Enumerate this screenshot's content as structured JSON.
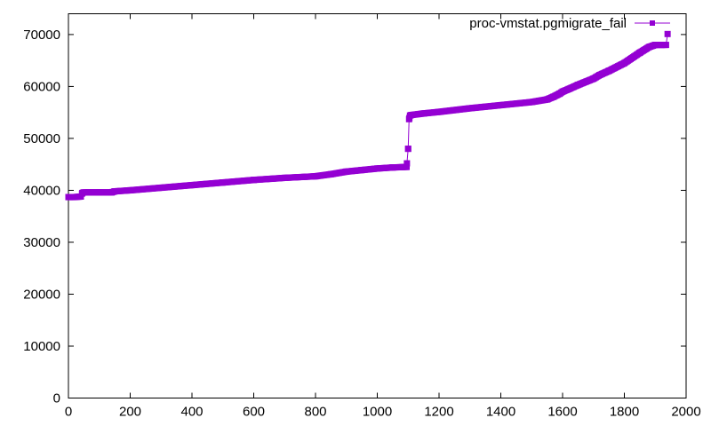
{
  "chart_data": {
    "type": "line",
    "title": "",
    "xlabel": "",
    "ylabel": "",
    "xlim": [
      0,
      2000
    ],
    "ylim": [
      0,
      74000
    ],
    "x_ticks": [
      0,
      200,
      400,
      600,
      800,
      1000,
      1200,
      1400,
      1600,
      1800,
      2000
    ],
    "y_ticks": [
      0,
      10000,
      20000,
      30000,
      40000,
      50000,
      60000,
      70000
    ],
    "x_tick_labels": [
      "0",
      "200",
      "400",
      "600",
      "800",
      "1000",
      "1200",
      "1400",
      "1600",
      "1800",
      "2000"
    ],
    "y_tick_labels": [
      "0",
      "10000",
      "20000",
      "30000",
      "40000",
      "50000",
      "60000",
      "70000"
    ],
    "grid": false,
    "legend_position": "top-right",
    "series": [
      {
        "name": "proc-vmstat.pgmigrate_fail",
        "color": "#9400d3",
        "marker": "square",
        "x": [
          0,
          20,
          40,
          45,
          50,
          100,
          140,
          150,
          200,
          300,
          400,
          500,
          600,
          700,
          800,
          850,
          900,
          950,
          1000,
          1050,
          1095,
          1100,
          1103,
          1106,
          1110,
          1150,
          1200,
          1300,
          1400,
          1500,
          1550,
          1570,
          1580,
          1590,
          1600,
          1620,
          1650,
          1700,
          1720,
          1750,
          1800,
          1850,
          1880,
          1900,
          1920,
          1935,
          1940
        ],
        "y": [
          38700,
          38700,
          38800,
          39500,
          39600,
          39600,
          39600,
          39800,
          40000,
          40500,
          41000,
          41500,
          42000,
          42400,
          42700,
          43100,
          43600,
          43900,
          44200,
          44400,
          44500,
          48000,
          53700,
          54400,
          54500,
          54800,
          55100,
          55800,
          56400,
          57000,
          57500,
          58000,
          58300,
          58600,
          59000,
          59500,
          60300,
          61500,
          62200,
          63000,
          64500,
          66500,
          67600,
          68000,
          68000,
          68000,
          70100
        ]
      }
    ]
  }
}
